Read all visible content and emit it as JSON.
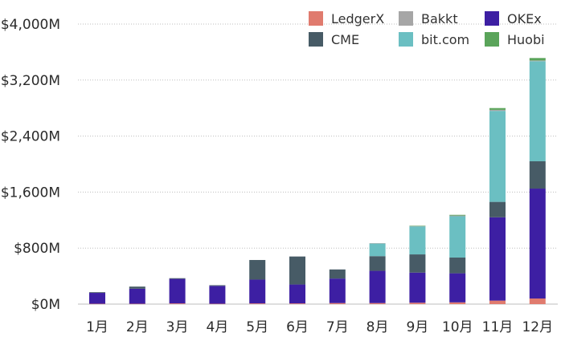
{
  "chart_data": {
    "type": "bar",
    "stacked": true,
    "title": "",
    "xlabel": "",
    "ylabel": "",
    "categories": [
      "1月",
      "2月",
      "3月",
      "4月",
      "5月",
      "6月",
      "7月",
      "8月",
      "9月",
      "10月",
      "11月",
      "12月"
    ],
    "ylim": [
      0,
      4000
    ],
    "yticks": [
      {
        "value": 0,
        "label": "$0M"
      },
      {
        "value": 800,
        "label": "$800M"
      },
      {
        "value": 1600,
        "label": "$1,600M"
      },
      {
        "value": 2400,
        "label": "$2,400M"
      },
      {
        "value": 3200,
        "label": "$3,200M"
      },
      {
        "value": 4000,
        "label": "$4,000M"
      }
    ],
    "grid": true,
    "legend_position": "top-right",
    "series": [
      {
        "name": "LedgerX",
        "color": "#e07b6e",
        "values": [
          5,
          5,
          10,
          5,
          10,
          10,
          15,
          15,
          20,
          25,
          50,
          80
        ]
      },
      {
        "name": "OKEx",
        "color": "#3d1fa3",
        "values": [
          155,
          215,
          350,
          255,
          340,
          270,
          350,
          460,
          430,
          415,
          1190,
          1570
        ]
      },
      {
        "name": "CME",
        "color": "#475b66",
        "values": [
          10,
          30,
          10,
          10,
          280,
          400,
          130,
          210,
          260,
          225,
          220,
          390
        ]
      },
      {
        "name": "bit.com",
        "color": "#6bbfc2",
        "values": [
          0,
          0,
          0,
          0,
          0,
          0,
          0,
          180,
          400,
          590,
          1300,
          1430
        ]
      },
      {
        "name": "Bakkt",
        "color": "#a6a6a6",
        "values": [
          0,
          0,
          0,
          0,
          0,
          0,
          0,
          5,
          5,
          10,
          15,
          10
        ]
      },
      {
        "name": "Huobi",
        "color": "#5aa45a",
        "values": [
          0,
          0,
          0,
          0,
          0,
          0,
          0,
          0,
          5,
          10,
          25,
          35
        ]
      }
    ],
    "legend_order": [
      "LedgerX",
      "Bakkt",
      "OKEx",
      "CME",
      "bit.com",
      "Huobi"
    ]
  }
}
